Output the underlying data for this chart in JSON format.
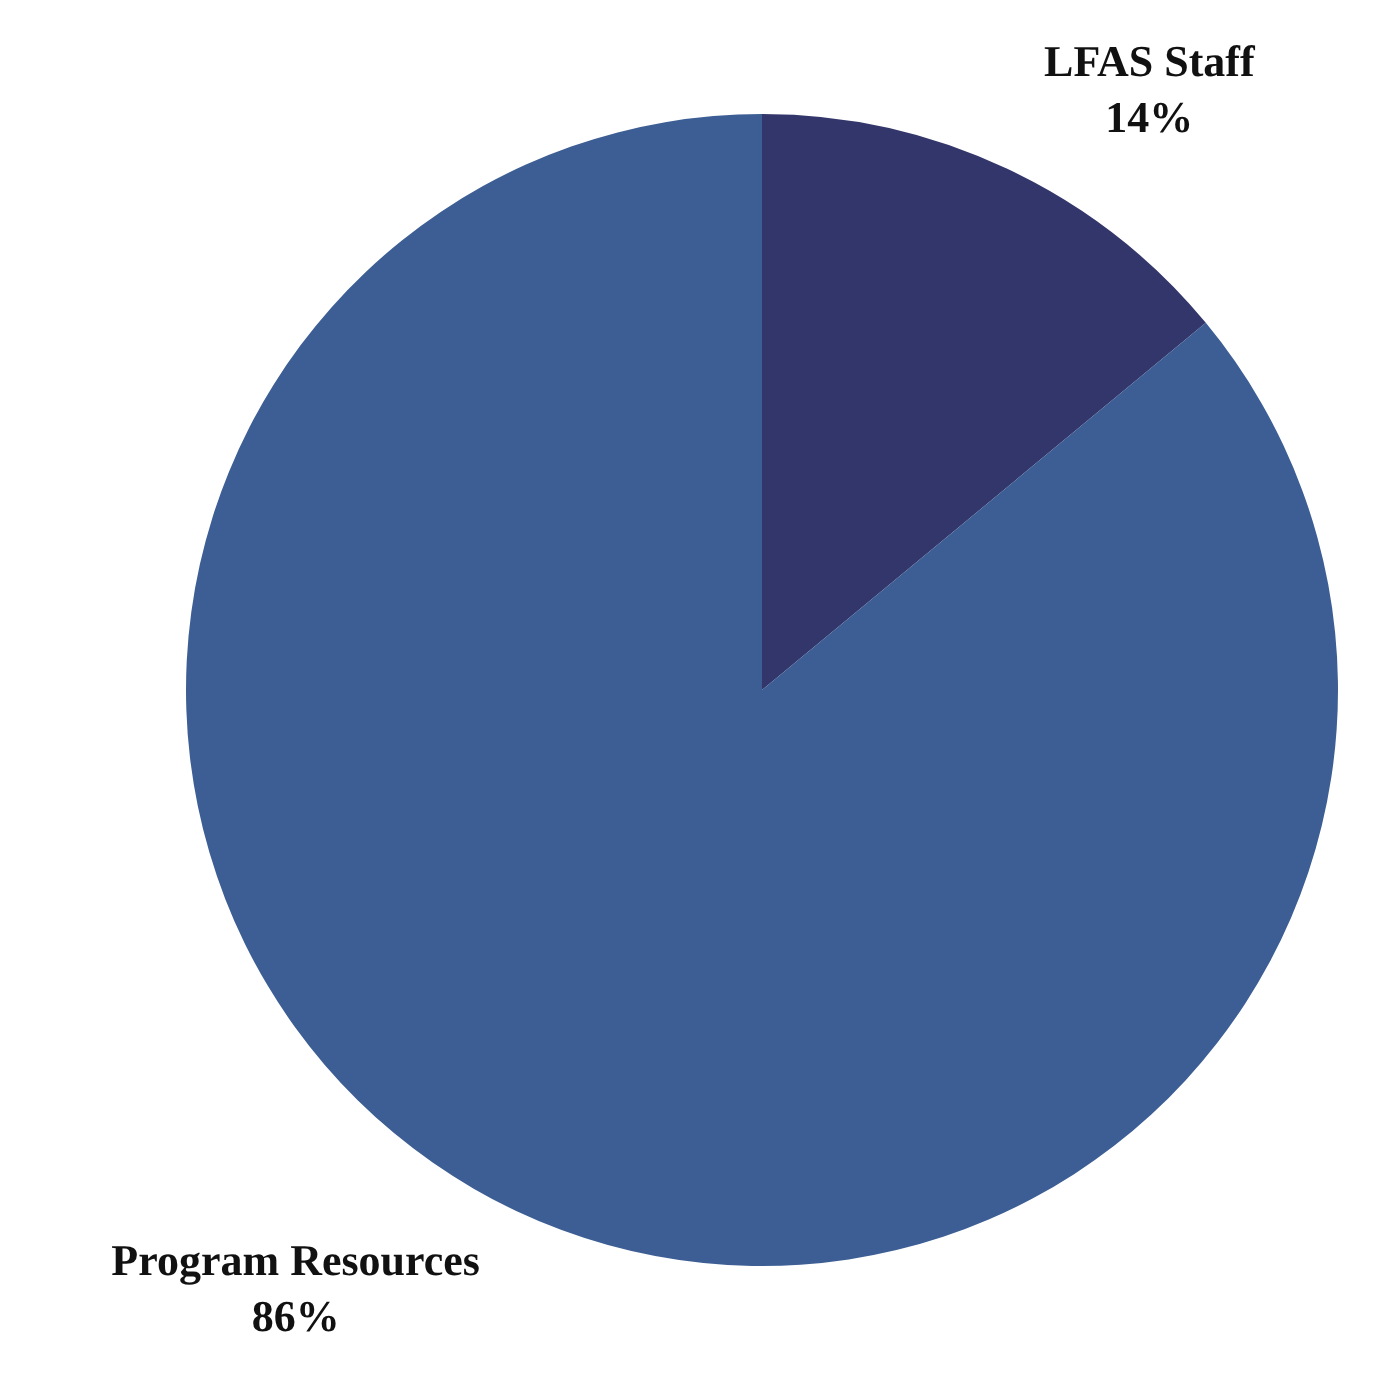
{
  "chart_data": {
    "type": "pie",
    "categories": [
      "LFAS Staff",
      "Program Resources"
    ],
    "values": [
      14,
      86
    ],
    "colors": [
      "#33366a",
      "#3c5e94"
    ],
    "value_labels": [
      "14%",
      "86%"
    ],
    "legend": false
  }
}
